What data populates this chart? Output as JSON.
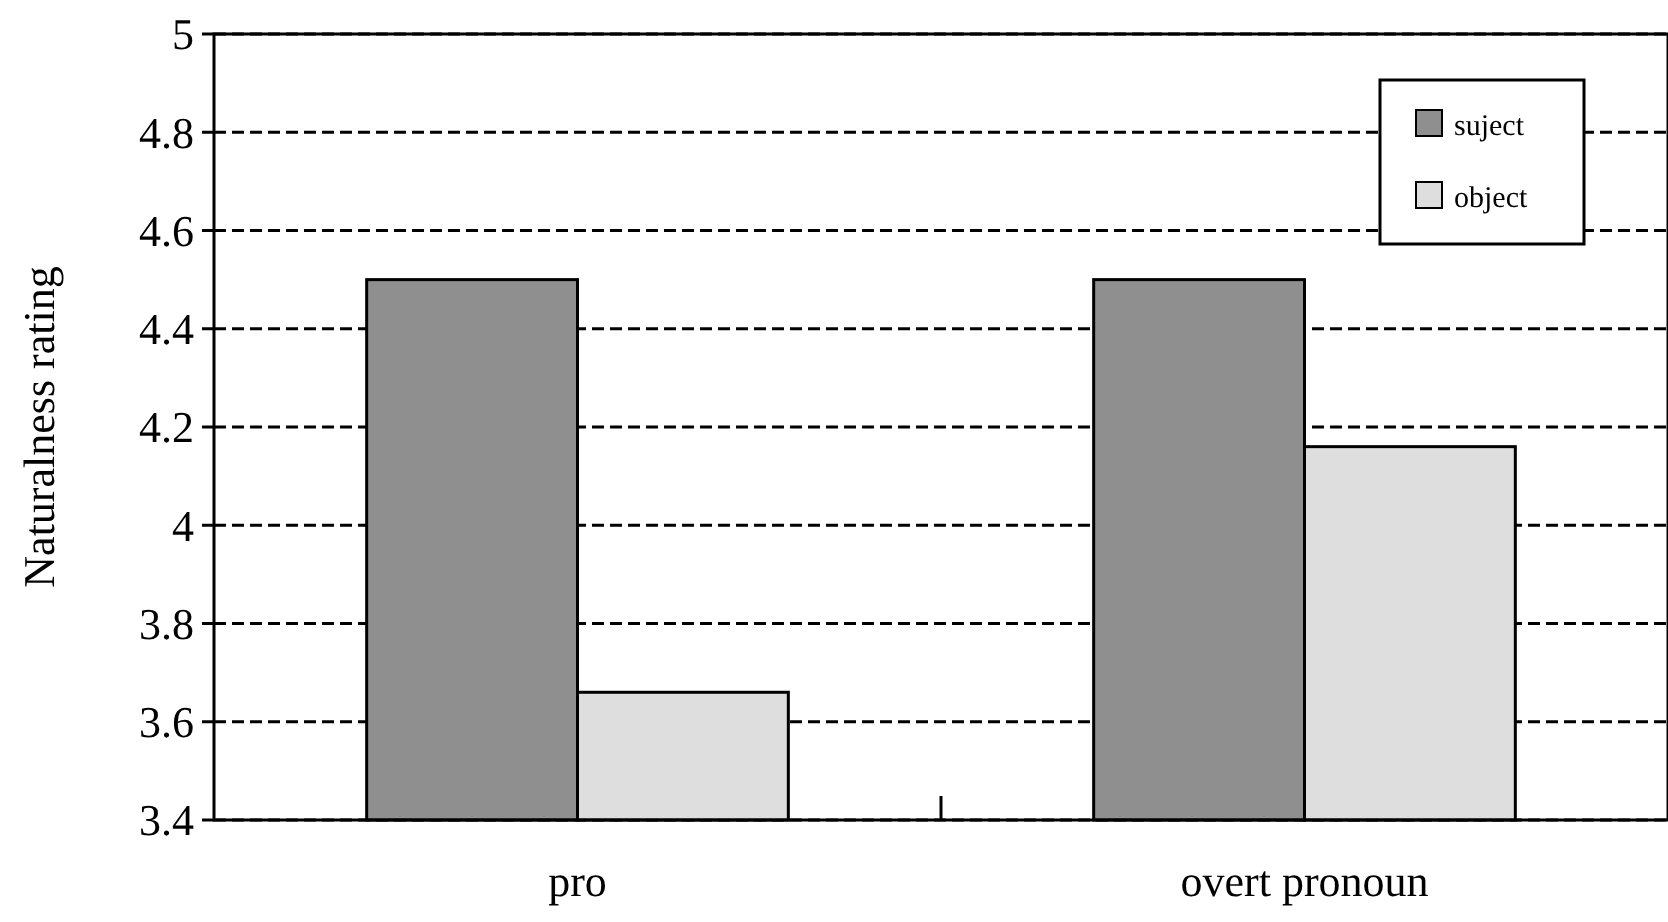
{
  "chart_data": {
    "type": "bar",
    "ylabel": "Naturalness rating",
    "categories": [
      "pro",
      "overt pronoun"
    ],
    "series": [
      {
        "name": "suject",
        "color": "#8f8f8f",
        "values": [
          4.5,
          4.5
        ]
      },
      {
        "name": "object",
        "color": "#dedede",
        "values": [
          3.66,
          4.16
        ]
      }
    ],
    "ylim": [
      3.4,
      5
    ],
    "yticks": [
      3.4,
      3.6,
      3.8,
      4,
      4.2,
      4.4,
      4.6,
      4.8,
      5
    ],
    "grid": "y",
    "legend": "top right"
  }
}
